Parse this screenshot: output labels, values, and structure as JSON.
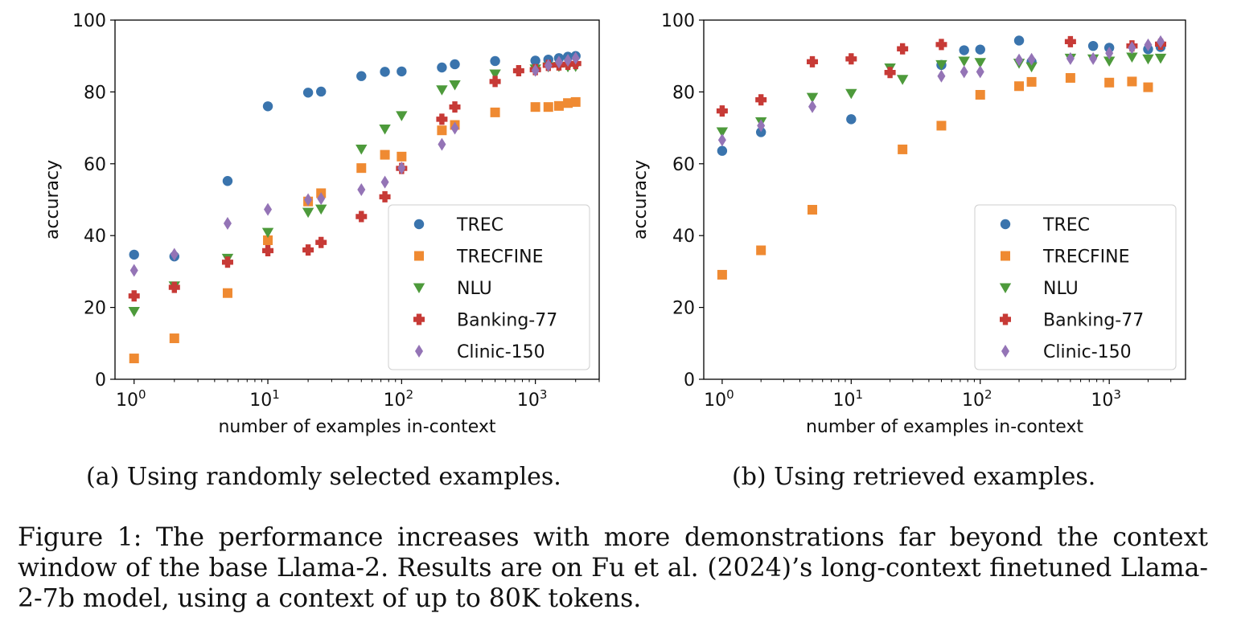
{
  "figure": {
    "caption_label": "Figure 1:",
    "caption_text": "The performance increases with more demonstrations far beyond the context window of the base Llama-2. Results are on Fu et al. (2024)’s long-context finetuned Llama-2-7b model, using a context of up to 80K tokens."
  },
  "subcaptions": {
    "a": "(a) Using randomly selected examples.",
    "b": "(b) Using retrieved examples."
  },
  "colors": {
    "TREC": "#3a74ad",
    "TRECFINE": "#ef8a32",
    "NLU": "#4d9a3b",
    "Banking-77": "#c73a36",
    "Clinic-150": "#9474b6"
  },
  "chart_data": [
    {
      "type": "scatter",
      "title": "",
      "xlabel": "number of examples in-context",
      "ylabel": "accuracy",
      "xscale": "log",
      "xlim": [
        0.72,
        3000
      ],
      "ylim": [
        0,
        100
      ],
      "yticks": [
        0,
        20,
        40,
        60,
        80,
        100
      ],
      "xticks": [
        {
          "value": 1,
          "label": "10",
          "exp": "0"
        },
        {
          "value": 10,
          "label": "10",
          "exp": "1"
        },
        {
          "value": 100,
          "label": "10",
          "exp": "2"
        },
        {
          "value": 1000,
          "label": "10",
          "exp": "3"
        }
      ],
      "legend": "lower-right",
      "series": [
        {
          "name": "TREC",
          "marker": "circle",
          "x": [
            1,
            2,
            5,
            10,
            20,
            25,
            50,
            75,
            100,
            200,
            250,
            500,
            1000,
            1250,
            1500,
            1750,
            2000
          ],
          "y": [
            34.7,
            34.2,
            55.2,
            76.0,
            79.8,
            80.1,
            84.4,
            85.6,
            85.7,
            86.8,
            87.7,
            88.6,
            88.7,
            89.0,
            89.4,
            89.8,
            90.0
          ]
        },
        {
          "name": "TRECFINE",
          "marker": "square",
          "x": [
            1,
            2,
            5,
            10,
            20,
            25,
            50,
            75,
            100,
            200,
            250,
            500,
            1000,
            1250,
            1500,
            1750,
            2000
          ],
          "y": [
            5.8,
            11.4,
            24.0,
            38.7,
            49.5,
            51.8,
            58.8,
            62.5,
            62.0,
            69.3,
            70.8,
            74.3,
            75.8,
            75.8,
            76.1,
            76.9,
            77.2
          ]
        },
        {
          "name": "NLU",
          "marker": "triangle-down",
          "x": [
            1,
            2,
            5,
            10,
            20,
            25,
            50,
            75,
            100,
            200,
            250,
            500,
            1000,
            1250,
            1500,
            1750,
            2000
          ],
          "y": [
            18.9,
            26.0,
            33.7,
            40.9,
            46.5,
            47.4,
            64.1,
            69.7,
            73.4,
            80.6,
            82.0,
            85.0,
            86.4,
            87.0,
            87.1,
            87.0,
            87.1
          ]
        },
        {
          "name": "Banking-77",
          "marker": "plus",
          "x": [
            1,
            2,
            5,
            10,
            20,
            25,
            50,
            75,
            100,
            200,
            250,
            500,
            750,
            1000,
            1250,
            1500,
            1750,
            2000
          ],
          "y": [
            23.2,
            25.6,
            32.6,
            35.8,
            36.0,
            38.1,
            45.3,
            50.8,
            58.7,
            72.4,
            75.8,
            82.9,
            85.9,
            86.2,
            87.4,
            87.5,
            87.7,
            87.9
          ]
        },
        {
          "name": "Clinic-150",
          "marker": "diamond",
          "x": [
            1,
            2,
            5,
            10,
            20,
            25,
            50,
            75,
            100,
            200,
            250,
            1000,
            1250,
            1500,
            1750,
            2000
          ],
          "y": [
            30.3,
            34.8,
            43.4,
            47.3,
            50.0,
            50.3,
            52.8,
            54.9,
            58.8,
            65.4,
            69.9,
            86.0,
            87.4,
            88.3,
            88.8,
            89.4
          ]
        }
      ]
    },
    {
      "type": "scatter",
      "title": "",
      "xlabel": "number of examples in-context",
      "ylabel": "accuracy",
      "xscale": "log",
      "xlim": [
        0.72,
        3900
      ],
      "ylim": [
        0,
        100
      ],
      "yticks": [
        0,
        20,
        40,
        60,
        80,
        100
      ],
      "xticks": [
        {
          "value": 1,
          "label": "10",
          "exp": "0"
        },
        {
          "value": 10,
          "label": "10",
          "exp": "1"
        },
        {
          "value": 100,
          "label": "10",
          "exp": "2"
        },
        {
          "value": 1000,
          "label": "10",
          "exp": "3"
        }
      ],
      "legend": "lower-right",
      "series": [
        {
          "name": "TREC",
          "marker": "circle",
          "x": [
            1,
            2,
            10,
            50,
            75,
            100,
            200,
            250,
            750,
            1000,
            2000,
            2500
          ],
          "y": [
            63.6,
            68.8,
            72.4,
            87.5,
            91.6,
            91.8,
            94.3,
            88.4,
            92.8,
            92.3,
            91.9,
            92.5
          ]
        },
        {
          "name": "TRECFINE",
          "marker": "square",
          "x": [
            1,
            2,
            5,
            25,
            50,
            100,
            200,
            250,
            500,
            1000,
            1500,
            2000
          ],
          "y": [
            29.1,
            35.9,
            47.2,
            64.0,
            70.6,
            79.2,
            81.6,
            82.8,
            83.9,
            82.6,
            82.9,
            81.3
          ]
        },
        {
          "name": "NLU",
          "marker": "triangle-down",
          "x": [
            1,
            2,
            5,
            10,
            20,
            25,
            50,
            75,
            100,
            200,
            250,
            500,
            750,
            1000,
            1500,
            2000,
            2500
          ],
          "y": [
            68.9,
            71.7,
            78.5,
            79.6,
            86.7,
            83.5,
            87.6,
            88.6,
            88.2,
            88.0,
            87.0,
            89.4,
            89.2,
            88.6,
            89.7,
            89.2,
            89.4
          ]
        },
        {
          "name": "Banking-77",
          "marker": "plus",
          "x": [
            1,
            2,
            5,
            10,
            20,
            25,
            50,
            500,
            1500,
            2500
          ],
          "y": [
            74.7,
            77.8,
            88.4,
            89.2,
            85.4,
            92.0,
            93.2,
            94.0,
            92.8,
            93.3
          ]
        },
        {
          "name": "Clinic-150",
          "marker": "diamond",
          "x": [
            1,
            2,
            5,
            50,
            75,
            100,
            200,
            250,
            500,
            750,
            1000,
            1500,
            2000,
            2500
          ],
          "y": [
            66.6,
            70.6,
            75.9,
            84.4,
            85.6,
            85.6,
            88.9,
            89.1,
            89.3,
            89.3,
            90.8,
            92.3,
            93.1,
            94.0
          ]
        }
      ]
    }
  ]
}
